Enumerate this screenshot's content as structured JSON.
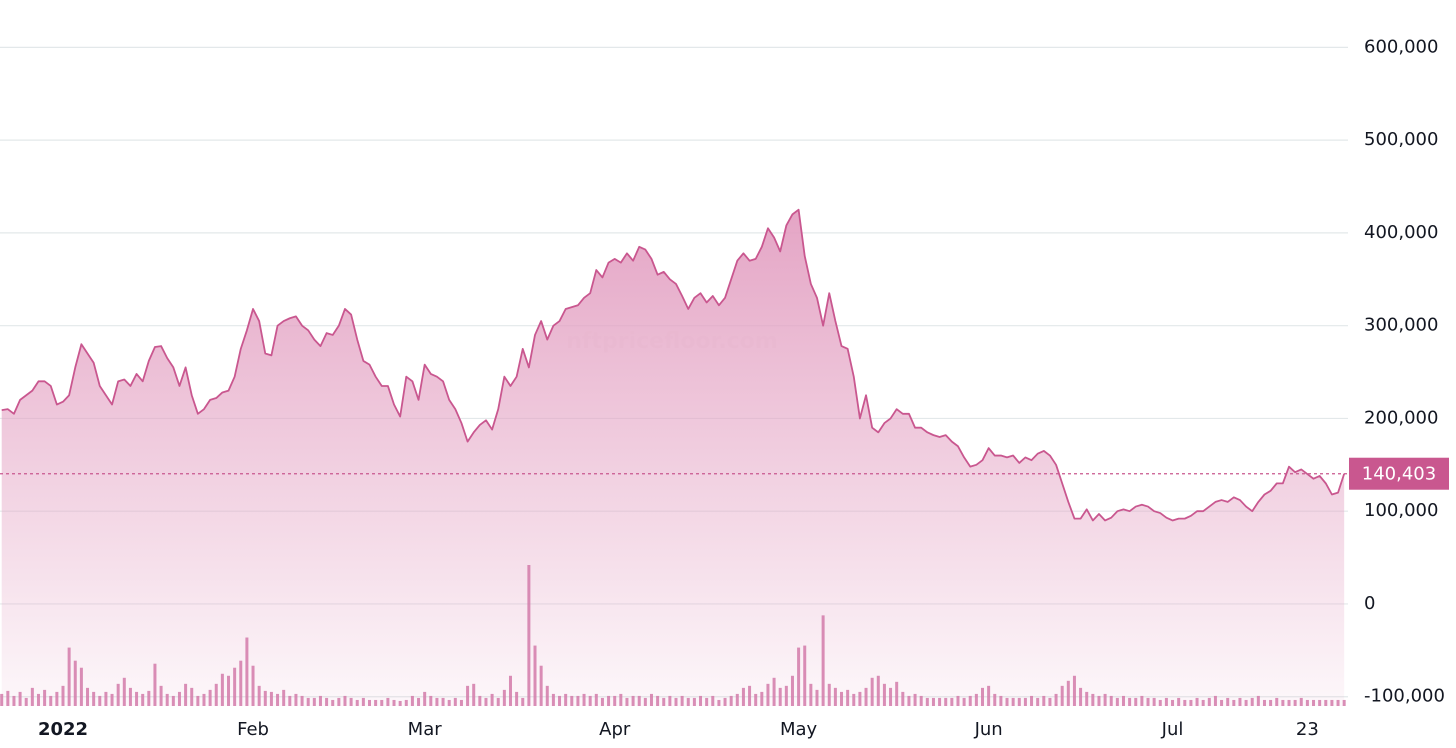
{
  "chart_data": {
    "type": "area",
    "watermark": "nftpricefloor.com",
    "categories": [
      null,
      null,
      null,
      null,
      null,
      null,
      null,
      null,
      null,
      null,
      "2022",
      null,
      null,
      null,
      null,
      null,
      null,
      null,
      null,
      null,
      null,
      null,
      null,
      null,
      null,
      null,
      null,
      null,
      null,
      null,
      null,
      null,
      null,
      null,
      null,
      null,
      null,
      null,
      null,
      null,
      null,
      "Feb",
      null,
      null,
      null,
      null,
      null,
      null,
      null,
      null,
      null,
      null,
      null,
      null,
      null,
      null,
      null,
      null,
      null,
      null,
      null,
      null,
      null,
      null,
      null,
      null,
      null,
      null,
      null,
      "Mar",
      null,
      null,
      null,
      null,
      null,
      null,
      null,
      null,
      null,
      null,
      null,
      null,
      null,
      null,
      null,
      null,
      null,
      null,
      null,
      null,
      null,
      null,
      null,
      null,
      null,
      null,
      null,
      null,
      null,
      null,
      "Apr",
      null,
      null,
      null,
      null,
      null,
      null,
      null,
      null,
      null,
      null,
      null,
      null,
      null,
      null,
      null,
      null,
      null,
      null,
      null,
      null,
      null,
      null,
      null,
      null,
      null,
      null,
      null,
      null,
      null,
      "May",
      null,
      null,
      null,
      null,
      null,
      null,
      null,
      null,
      null,
      null,
      null,
      null,
      null,
      null,
      null,
      null,
      null,
      null,
      null,
      null,
      null,
      null,
      null,
      null,
      null,
      null,
      null,
      null,
      null,
      null,
      "Jun",
      null,
      null,
      null,
      null,
      null,
      null,
      null,
      null,
      null,
      null,
      null,
      null,
      null,
      null,
      null,
      null,
      null,
      null,
      null,
      null,
      null,
      null,
      null,
      null,
      null,
      null,
      null,
      null,
      null,
      "Jul",
      null,
      null,
      null,
      null,
      null,
      null,
      null,
      null,
      null,
      null,
      null,
      null,
      null,
      null,
      null,
      null,
      null,
      null,
      null,
      null,
      null,
      "23",
      null,
      null,
      null,
      null,
      null,
      null
    ],
    "series": [
      {
        "color": "#c9578f",
        "fill": "#e3a0c2",
        "values": [
          209000,
          210000,
          205000,
          220000,
          225000,
          230000,
          240000,
          240000,
          235000,
          215000,
          218000,
          225000,
          255000,
          280000,
          270000,
          260000,
          235000,
          225000,
          215000,
          240000,
          242000,
          235000,
          248000,
          240000,
          262000,
          277000,
          278000,
          265000,
          255000,
          235000,
          255000,
          225000,
          205000,
          210000,
          220000,
          222000,
          228000,
          230000,
          245000,
          275000,
          295000,
          318000,
          305000,
          270000,
          268000,
          300000,
          305000,
          308000,
          310000,
          300000,
          295000,
          285000,
          278000,
          292000,
          290000,
          300000,
          318000,
          312000,
          285000,
          262000,
          258000,
          245000,
          235000,
          235000,
          215000,
          202000,
          245000,
          240000,
          220000,
          258000,
          248000,
          245000,
          240000,
          220000,
          210000,
          195000,
          175000,
          185000,
          193000,
          198000,
          188000,
          210000,
          245000,
          235000,
          245000,
          275000,
          255000,
          290000,
          305000,
          285000,
          300000,
          305000,
          318000,
          320000,
          322000,
          330000,
          335000,
          360000,
          352000,
          368000,
          372000,
          368000,
          378000,
          370000,
          385000,
          382000,
          372000,
          355000,
          358000,
          350000,
          345000,
          332000,
          318000,
          330000,
          335000,
          325000,
          332000,
          322000,
          330000,
          350000,
          370000,
          378000,
          370000,
          372000,
          385000,
          405000,
          395000,
          380000,
          408000,
          420000,
          425000,
          375000,
          345000,
          330000,
          300000,
          335000,
          305000,
          278000,
          275000,
          245000,
          200000,
          225000,
          190000,
          185000,
          195000,
          200000,
          210000,
          205000,
          205000,
          190000,
          190000,
          185000,
          182000,
          180000,
          182000,
          175000,
          170000,
          158000,
          148000,
          150000,
          155000,
          168000,
          160000,
          160000,
          158000,
          160000,
          152000,
          158000,
          155000,
          162000,
          165000,
          160000,
          150000,
          130000,
          110000,
          92000,
          92000,
          102000,
          90000,
          97000,
          90000,
          93000,
          100000,
          102000,
          100000,
          105000,
          107000,
          105000,
          100000,
          98000,
          93000,
          90000,
          92000,
          92000,
          95000,
          100000,
          100000,
          105000,
          110000,
          112000,
          110000,
          115000,
          112000,
          105000,
          100000,
          110000,
          118000,
          122000,
          130000,
          130000,
          148000,
          142000,
          145000,
          140000,
          135000,
          138000,
          130000,
          118000,
          120000,
          140403
        ]
      },
      {
        "color": "#d27aa9",
        "axis": "y2",
        "type": "bar",
        "values": [
          12,
          15,
          10,
          14,
          8,
          18,
          12,
          16,
          10,
          14,
          20,
          58,
          45,
          38,
          18,
          14,
          10,
          14,
          12,
          22,
          28,
          18,
          14,
          12,
          15,
          42,
          20,
          12,
          10,
          14,
          22,
          18,
          10,
          12,
          16,
          22,
          32,
          30,
          38,
          45,
          68,
          40,
          20,
          15,
          14,
          12,
          16,
          10,
          12,
          10,
          8,
          8,
          10,
          8,
          6,
          8,
          10,
          8,
          6,
          8,
          6,
          6,
          6,
          8,
          6,
          5,
          6,
          10,
          8,
          14,
          10,
          8,
          8,
          6,
          8,
          6,
          20,
          22,
          10,
          8,
          12,
          8,
          16,
          30,
          14,
          8,
          140,
          60,
          40,
          20,
          12,
          10,
          12,
          10,
          10,
          12,
          10,
          12,
          8,
          10,
          10,
          12,
          8,
          10,
          10,
          8,
          12,
          10,
          8,
          10,
          8,
          10,
          8,
          8,
          10,
          8,
          10,
          6,
          8,
          10,
          12,
          18,
          20,
          12,
          14,
          22,
          28,
          18,
          20,
          30,
          58,
          60,
          22,
          16,
          90,
          22,
          18,
          14,
          16,
          12,
          14,
          18,
          28,
          30,
          22,
          18,
          24,
          14,
          10,
          12,
          10,
          8,
          8,
          8,
          8,
          8,
          10,
          8,
          10,
          12,
          18,
          20,
          12,
          10,
          8,
          8,
          8,
          8,
          10,
          8,
          10,
          8,
          12,
          20,
          25,
          30,
          18,
          14,
          12,
          10,
          12,
          10,
          8,
          10,
          8,
          8,
          10,
          8,
          8,
          6,
          8,
          6,
          8,
          6,
          6,
          8,
          6,
          8,
          10,
          6,
          8,
          6,
          8,
          6,
          8,
          10,
          6,
          6,
          8,
          6,
          6,
          6,
          8,
          6,
          6,
          6,
          6,
          6,
          6,
          6
        ]
      }
    ],
    "last_value": {
      "value": 140403,
      "label": "140,403"
    },
    "ylim": [
      -110000,
      650000
    ],
    "yticks": [
      {
        "value": -100000,
        "label": "-100,000"
      },
      0,
      {
        "value": 100000,
        "label": "100,000"
      },
      {
        "value": 200000,
        "label": "200,000"
      },
      {
        "value": 300000,
        "label": "300,000"
      },
      {
        "value": 400000,
        "label": "400,000"
      },
      {
        "value": 500000,
        "label": "500,000"
      },
      {
        "value": 600000,
        "label": "600,000"
      }
    ],
    "y2lim": [
      0,
      700
    ],
    "grid": true
  }
}
